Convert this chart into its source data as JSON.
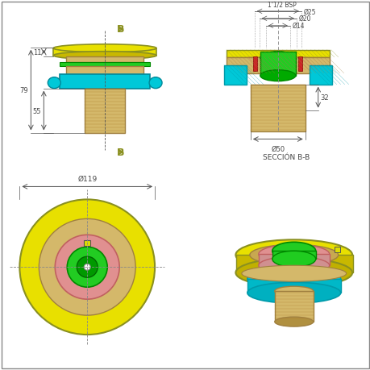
{
  "bg_color": "#ffffff",
  "border_color": "#888888",
  "dim_line_color": "#555555",
  "dim_text_color": "#444444",
  "yellow_fill": "#e8e000",
  "gold_fill": "#d4b86a",
  "cyan_fill": "#00c8d8",
  "green_fill": "#22cc22",
  "pink_fill": "#e09090",
  "red_color": "#cc2222",
  "olive_color": "#8a9020",
  "dim_11": "11",
  "dim_79": "79",
  "dim_55": "55",
  "dim_50": "Ø50",
  "dim_32": "32",
  "dim_25": "Ø25",
  "dim_20": "Ø20",
  "dim_14": "Ø14",
  "dim_bsp": "1'1/2 BSP",
  "dim_119": "Ø119",
  "seccion": "SECCIÓN B-B",
  "label_B": "B"
}
